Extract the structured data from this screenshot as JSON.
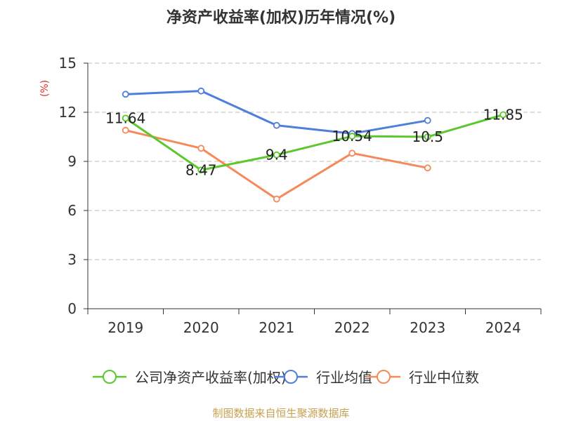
{
  "chart_data": {
    "type": "line",
    "title": "净资产收益率(加权)历年情况(%)",
    "ylabel": "(%)",
    "xlabel": "",
    "categories": [
      "2019",
      "2020",
      "2021",
      "2022",
      "2023",
      "2024"
    ],
    "ylim": [
      0,
      15
    ],
    "yticks": [
      0,
      3,
      6,
      9,
      12,
      15
    ],
    "grid": true,
    "legend_position": "bottom",
    "series": [
      {
        "name": "公司净资产收益率(加权)",
        "color": "#5cc72e",
        "values": [
          11.64,
          8.47,
          9.4,
          10.54,
          10.5,
          11.85
        ],
        "labels": [
          "11.64",
          "8.47",
          "9.4",
          "10.54",
          "10.5",
          "11.85"
        ]
      },
      {
        "name": "行业均值",
        "color": "#4f7fdb",
        "values": [
          13.1,
          13.3,
          11.2,
          10.7,
          11.5,
          null
        ]
      },
      {
        "name": "行业中位数",
        "color": "#f5895a",
        "values": [
          10.9,
          9.8,
          6.7,
          9.5,
          8.6,
          null
        ]
      }
    ]
  },
  "colors": {
    "title": "#333333",
    "axis_text": "#333333",
    "ylabel": "#e0301e",
    "grid": "#bbbbbb",
    "source": "#c8a050"
  },
  "source_note": "制图数据来自恒生聚源数据库"
}
